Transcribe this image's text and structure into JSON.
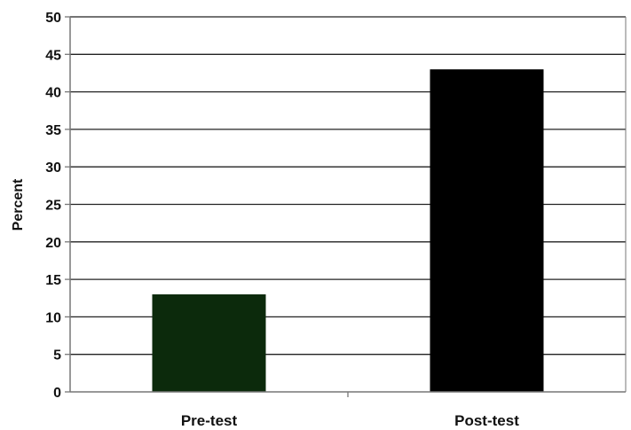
{
  "chart_data": {
    "type": "bar",
    "title": "",
    "xlabel": "",
    "ylabel": "Percent",
    "categories": [
      "Pre-test",
      "Post-test"
    ],
    "values": [
      13,
      43
    ],
    "bar_colors": [
      "#0c2a0c",
      "#000000"
    ],
    "ylim": [
      0,
      50
    ],
    "yticks": [
      0,
      5,
      10,
      15,
      20,
      25,
      30,
      35,
      40,
      45,
      50
    ],
    "grid": true,
    "legend": "none"
  }
}
